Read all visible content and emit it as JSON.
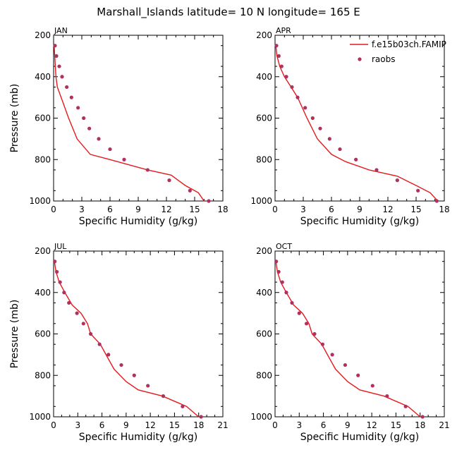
{
  "title": "Marshall_Islands  latitude= 10 N longitude= 165 E",
  "colors": {
    "model": "#e41a1c",
    "obs": "#b03060",
    "axis": "#000000"
  },
  "legend": {
    "model_label": "f.e15b03ch.FAMIP",
    "obs_label": "raobs"
  },
  "chart_data": [
    {
      "type": "line",
      "month": "JAN",
      "xlabel": "Specific Humidity (g/kg)",
      "ylabel": "Pressure (mb)",
      "xlim": [
        0,
        18
      ],
      "ylim": [
        1000,
        200
      ],
      "xticks": [
        0,
        3,
        6,
        9,
        12,
        15,
        18
      ],
      "yticks": [
        200,
        400,
        600,
        800,
        1000
      ],
      "model": {
        "name": "f.e15b03ch.FAMIP",
        "points": [
          [
            16.0,
            1000
          ],
          [
            15.4,
            960
          ],
          [
            14.0,
            925
          ],
          [
            12.5,
            875
          ],
          [
            10.0,
            850
          ],
          [
            6.0,
            800
          ],
          [
            3.9,
            775
          ],
          [
            2.5,
            700
          ],
          [
            1.6,
            600
          ],
          [
            0.8,
            500
          ],
          [
            0.4,
            450
          ],
          [
            0.25,
            400
          ],
          [
            0.12,
            300
          ],
          [
            0.06,
            250
          ]
        ]
      },
      "obs": {
        "name": "raobs",
        "points": [
          [
            16.5,
            1000
          ],
          [
            14.5,
            950
          ],
          [
            12.3,
            900
          ],
          [
            10.0,
            850
          ],
          [
            7.5,
            800
          ],
          [
            6.0,
            750
          ],
          [
            4.8,
            700
          ],
          [
            3.8,
            650
          ],
          [
            3.2,
            600
          ],
          [
            2.6,
            550
          ],
          [
            1.9,
            500
          ],
          [
            1.4,
            450
          ],
          [
            0.9,
            400
          ],
          [
            0.6,
            350
          ],
          [
            0.3,
            300
          ],
          [
            0.15,
            250
          ]
        ]
      }
    },
    {
      "type": "line",
      "month": "APR",
      "xlabel": "Specific Humidity (g/kg)",
      "ylabel": "Pressure (mb)",
      "xlim": [
        0,
        18
      ],
      "ylim": [
        1000,
        200
      ],
      "xticks": [
        0,
        3,
        6,
        9,
        12,
        15,
        18
      ],
      "yticks": [
        200,
        400,
        600,
        800,
        1000
      ],
      "model": {
        "name": "f.e15b03ch.FAMIP",
        "points": [
          [
            17.3,
            1000
          ],
          [
            16.5,
            960
          ],
          [
            15.0,
            925
          ],
          [
            13.0,
            880
          ],
          [
            10.0,
            850
          ],
          [
            7.5,
            810
          ],
          [
            6.0,
            775
          ],
          [
            4.5,
            700
          ],
          [
            3.4,
            600
          ],
          [
            2.4,
            500
          ],
          [
            1.7,
            450
          ],
          [
            1.0,
            400
          ],
          [
            0.5,
            350
          ],
          [
            0.2,
            300
          ],
          [
            0.08,
            250
          ]
        ]
      },
      "obs": {
        "name": "raobs",
        "points": [
          [
            17.2,
            1000
          ],
          [
            15.2,
            950
          ],
          [
            13.0,
            900
          ],
          [
            10.8,
            850
          ],
          [
            8.6,
            800
          ],
          [
            6.9,
            750
          ],
          [
            5.8,
            700
          ],
          [
            4.8,
            650
          ],
          [
            4.0,
            600
          ],
          [
            3.2,
            550
          ],
          [
            2.4,
            500
          ],
          [
            1.8,
            450
          ],
          [
            1.2,
            400
          ],
          [
            0.7,
            350
          ],
          [
            0.4,
            300
          ],
          [
            0.15,
            250
          ]
        ]
      }
    },
    {
      "type": "line",
      "month": "JUL",
      "xlabel": "Specific Humidity (g/kg)",
      "ylabel": "Pressure (mb)",
      "xlim": [
        0,
        21
      ],
      "ylim": [
        1000,
        200
      ],
      "xticks": [
        0,
        3,
        6,
        9,
        12,
        15,
        18,
        21
      ],
      "yticks": [
        200,
        400,
        600,
        800,
        1000
      ],
      "model": {
        "name": "f.e15b03ch.FAMIP",
        "points": [
          [
            18.0,
            1000
          ],
          [
            16.5,
            950
          ],
          [
            13.5,
            900
          ],
          [
            10.5,
            870
          ],
          [
            9.0,
            830
          ],
          [
            7.5,
            770
          ],
          [
            6.5,
            700
          ],
          [
            5.8,
            650
          ],
          [
            4.6,
            600
          ],
          [
            4.2,
            550
          ],
          [
            3.4,
            500
          ],
          [
            2.3,
            460
          ],
          [
            1.4,
            400
          ],
          [
            0.7,
            350
          ],
          [
            0.3,
            300
          ],
          [
            0.1,
            250
          ]
        ]
      },
      "obs": {
        "name": "raobs",
        "points": [
          [
            18.3,
            1000
          ],
          [
            16.0,
            950
          ],
          [
            13.6,
            900
          ],
          [
            11.7,
            850
          ],
          [
            10.0,
            800
          ],
          [
            8.4,
            750
          ],
          [
            6.8,
            700
          ],
          [
            5.7,
            650
          ],
          [
            4.6,
            600
          ],
          [
            3.7,
            550
          ],
          [
            2.9,
            500
          ],
          [
            1.9,
            450
          ],
          [
            1.3,
            400
          ],
          [
            0.8,
            350
          ],
          [
            0.4,
            300
          ],
          [
            0.15,
            250
          ]
        ]
      }
    },
    {
      "type": "line",
      "month": "OCT",
      "xlabel": "Specific Humidity (g/kg)",
      "ylabel": "Pressure (mb)",
      "xlim": [
        0,
        21
      ],
      "ylim": [
        1000,
        200
      ],
      "xticks": [
        0,
        3,
        6,
        9,
        12,
        15,
        18,
        21
      ],
      "yticks": [
        200,
        400,
        600,
        800,
        1000
      ],
      "model": {
        "name": "f.e15b03ch.FAMIP",
        "points": [
          [
            18.0,
            1000
          ],
          [
            16.5,
            950
          ],
          [
            13.5,
            900
          ],
          [
            10.5,
            870
          ],
          [
            9.0,
            830
          ],
          [
            7.5,
            770
          ],
          [
            6.5,
            700
          ],
          [
            5.8,
            650
          ],
          [
            4.6,
            600
          ],
          [
            4.2,
            550
          ],
          [
            3.4,
            500
          ],
          [
            2.3,
            460
          ],
          [
            1.4,
            400
          ],
          [
            0.7,
            350
          ],
          [
            0.3,
            300
          ],
          [
            0.1,
            250
          ]
        ]
      },
      "obs": {
        "name": "raobs",
        "points": [
          [
            18.3,
            1000
          ],
          [
            16.2,
            950
          ],
          [
            13.9,
            900
          ],
          [
            12.1,
            850
          ],
          [
            10.3,
            800
          ],
          [
            8.7,
            750
          ],
          [
            7.1,
            700
          ],
          [
            5.9,
            650
          ],
          [
            4.9,
            600
          ],
          [
            3.9,
            550
          ],
          [
            3.0,
            500
          ],
          [
            2.1,
            450
          ],
          [
            1.4,
            400
          ],
          [
            0.9,
            350
          ],
          [
            0.45,
            300
          ],
          [
            0.15,
            250
          ]
        ]
      }
    }
  ]
}
